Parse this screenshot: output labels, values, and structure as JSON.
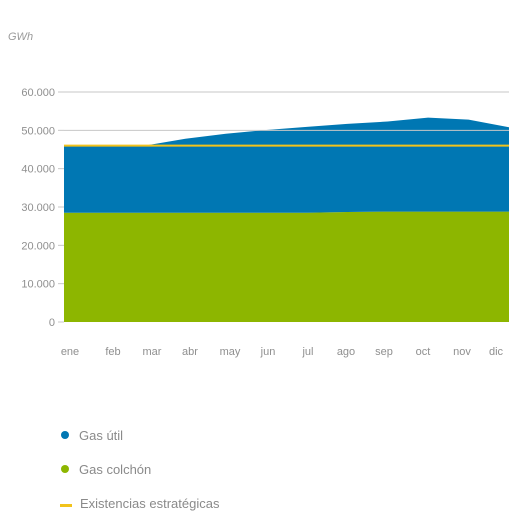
{
  "chart_data": {
    "type": "area",
    "unit": "GWh",
    "categories": [
      "ene",
      "feb",
      "mar",
      "abr",
      "may",
      "jun",
      "jul",
      "ago",
      "sep",
      "oct",
      "nov",
      "dic"
    ],
    "ylim": [
      0,
      60000
    ],
    "yticks": [
      0,
      10000,
      20000,
      30000,
      40000,
      50000,
      60000
    ],
    "ytick_labels": [
      "0",
      "10.000",
      "20.000",
      "30.000",
      "40.000",
      "50.000",
      "60.000"
    ],
    "stacked": true,
    "series": [
      {
        "name": "Gas colchón",
        "kind": "area",
        "color": "#8db600",
        "values": [
          28500,
          28500,
          28500,
          28500,
          28500,
          28500,
          28500,
          28700,
          28800,
          28800,
          28800,
          28800
        ]
      },
      {
        "name": "Gas útil",
        "kind": "area",
        "color": "#0077b3",
        "values": [
          17300,
          17300,
          17500,
          19300,
          20600,
          21600,
          22400,
          23000,
          23500,
          24500,
          24000,
          22000
        ]
      },
      {
        "name": "Existencias estratégicas",
        "kind": "line",
        "color": "#f2c31b",
        "values": [
          46000,
          46000,
          46000,
          46000,
          46000,
          46000,
          46000,
          46000,
          46000,
          46000,
          46000,
          46000
        ]
      }
    ],
    "grid": "horizontal-top-lines",
    "legend_placement": "bottom-left"
  },
  "legend": {
    "items": [
      {
        "label": "Gas útil",
        "color": "#0077b3",
        "shape": "dot"
      },
      {
        "label": "Gas colchón",
        "color": "#8db600",
        "shape": "dot"
      },
      {
        "label": "Existencias estratégicas",
        "color": "#f2c31b",
        "shape": "line"
      }
    ]
  }
}
